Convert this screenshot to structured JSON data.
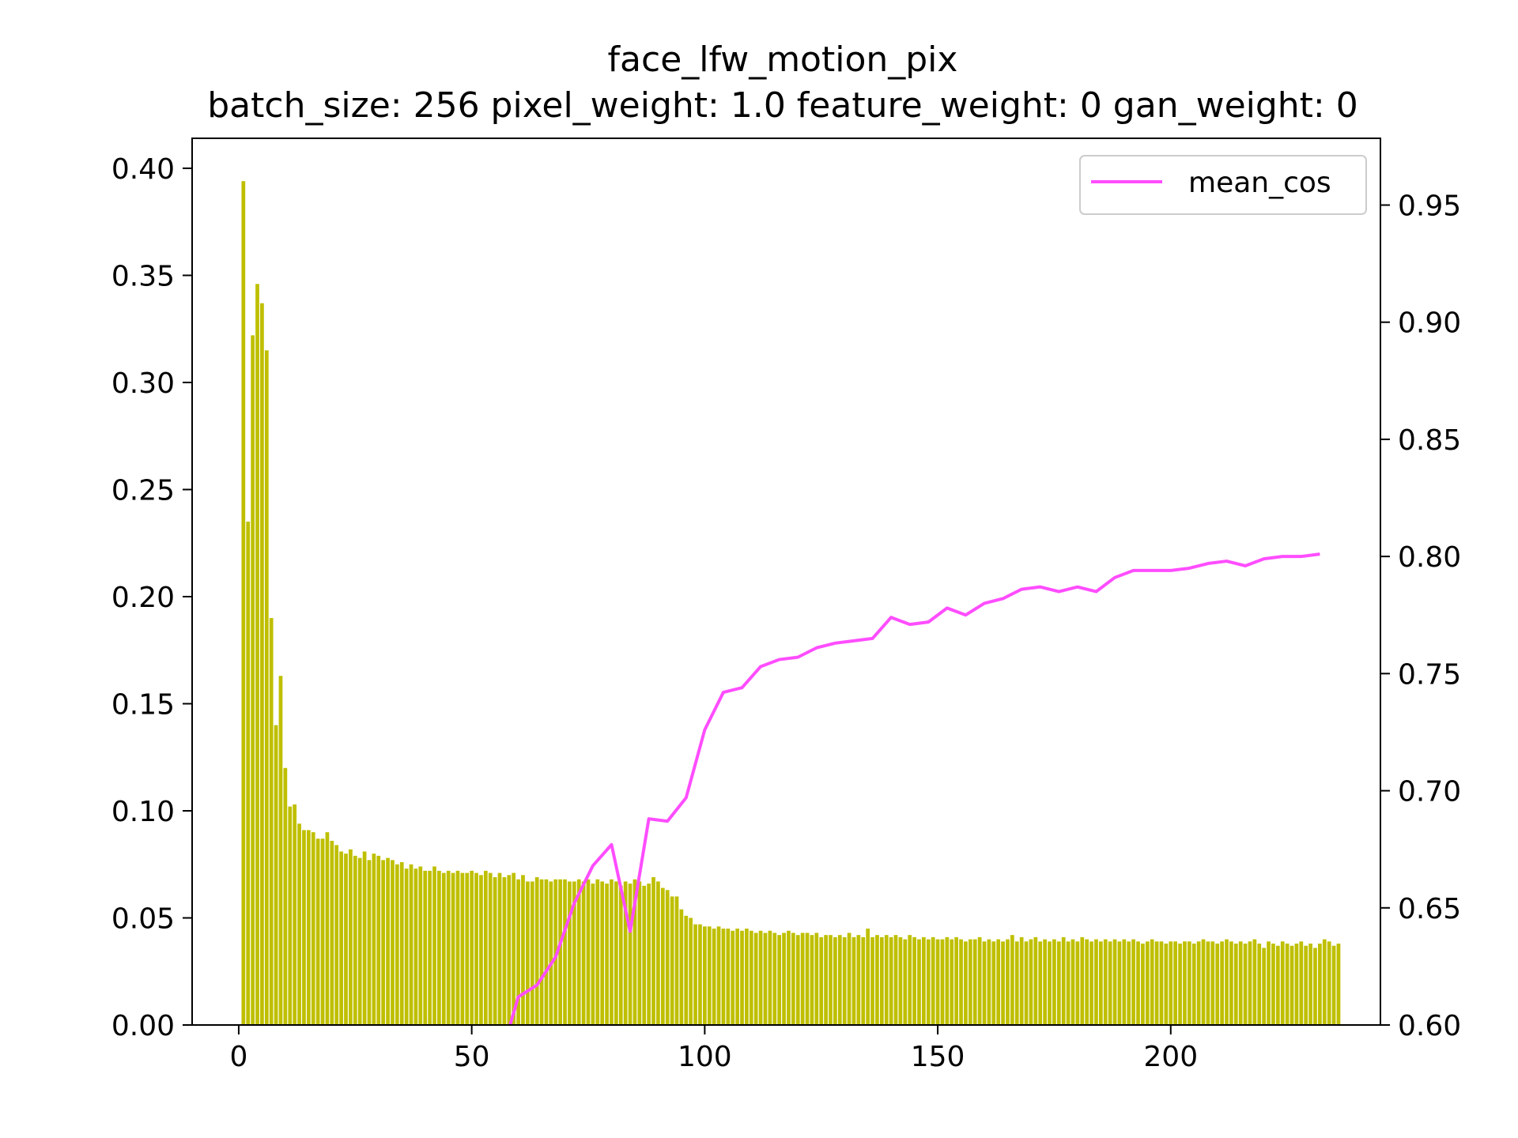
{
  "chart_data": {
    "type": "bar",
    "title": "face_lfw_motion_pix",
    "subtitle": "batch_size: 256 pixel_weight: 1.0 feature_weight: 0 gan_weight: 0",
    "xlabel": "",
    "ylabel": "",
    "xlim": [
      -10,
      245
    ],
    "ylim": [
      0,
      0.414
    ],
    "y2lim": [
      0.6,
      0.9785
    ],
    "x_ticks": [
      0,
      50,
      100,
      150,
      200
    ],
    "x_tick_labels": [
      "0",
      "50",
      "100",
      "150",
      "200"
    ],
    "y_ticks": [
      0,
      0.05,
      0.1,
      0.15,
      0.2,
      0.25,
      0.3,
      0.35,
      0.4
    ],
    "y_tick_labels": [
      "0.00",
      "0.05",
      "0.10",
      "0.15",
      "0.20",
      "0.25",
      "0.30",
      "0.35",
      "0.40"
    ],
    "y2_ticks": [
      0.6,
      0.65,
      0.7,
      0.75,
      0.8,
      0.85,
      0.9,
      0.95
    ],
    "y2_tick_labels": [
      "0.60",
      "0.65",
      "0.70",
      "0.75",
      "0.80",
      "0.85",
      "0.90",
      "0.95"
    ],
    "grid": false,
    "legend": {
      "position": "top-right",
      "entries": [
        "mean_cos"
      ]
    },
    "colors": {
      "bars": "#bfbf00",
      "line": "#ff4dff",
      "axes": "#000000"
    },
    "bars": {
      "x_start": 1,
      "x_step": 1,
      "bar_width": 0.8,
      "values": [
        0.394,
        0.235,
        0.322,
        0.346,
        0.337,
        0.315,
        0.19,
        0.14,
        0.163,
        0.12,
        0.102,
        0.103,
        0.094,
        0.091,
        0.091,
        0.09,
        0.087,
        0.087,
        0.09,
        0.086,
        0.084,
        0.081,
        0.08,
        0.082,
        0.079,
        0.078,
        0.081,
        0.077,
        0.08,
        0.079,
        0.077,
        0.078,
        0.077,
        0.075,
        0.076,
        0.073,
        0.075,
        0.073,
        0.074,
        0.072,
        0.072,
        0.074,
        0.072,
        0.071,
        0.072,
        0.071,
        0.072,
        0.071,
        0.071,
        0.072,
        0.071,
        0.07,
        0.072,
        0.071,
        0.069,
        0.071,
        0.069,
        0.07,
        0.071,
        0.068,
        0.07,
        0.067,
        0.067,
        0.069,
        0.068,
        0.068,
        0.067,
        0.068,
        0.068,
        0.068,
        0.067,
        0.067,
        0.068,
        0.067,
        0.068,
        0.066,
        0.068,
        0.067,
        0.066,
        0.068,
        0.067,
        0.065,
        0.067,
        0.066,
        0.068,
        0.067,
        0.065,
        0.066,
        0.069,
        0.067,
        0.064,
        0.063,
        0.06,
        0.06,
        0.054,
        0.051,
        0.05,
        0.047,
        0.047,
        0.046,
        0.046,
        0.045,
        0.046,
        0.045,
        0.045,
        0.044,
        0.045,
        0.044,
        0.045,
        0.044,
        0.043,
        0.044,
        0.043,
        0.044,
        0.043,
        0.042,
        0.043,
        0.044,
        0.043,
        0.042,
        0.043,
        0.043,
        0.042,
        0.043,
        0.041,
        0.042,
        0.042,
        0.041,
        0.042,
        0.041,
        0.043,
        0.041,
        0.042,
        0.041,
        0.045,
        0.041,
        0.042,
        0.041,
        0.042,
        0.041,
        0.042,
        0.041,
        0.04,
        0.042,
        0.041,
        0.04,
        0.041,
        0.04,
        0.041,
        0.04,
        0.04,
        0.041,
        0.04,
        0.041,
        0.04,
        0.039,
        0.04,
        0.04,
        0.041,
        0.039,
        0.04,
        0.039,
        0.04,
        0.039,
        0.04,
        0.042,
        0.039,
        0.041,
        0.039,
        0.04,
        0.041,
        0.039,
        0.04,
        0.039,
        0.04,
        0.039,
        0.041,
        0.039,
        0.04,
        0.039,
        0.041,
        0.04,
        0.039,
        0.04,
        0.039,
        0.04,
        0.039,
        0.04,
        0.039,
        0.04,
        0.039,
        0.04,
        0.039,
        0.038,
        0.039,
        0.04,
        0.039,
        0.039,
        0.038,
        0.039,
        0.039,
        0.038,
        0.039,
        0.039,
        0.038,
        0.039,
        0.04,
        0.039,
        0.039,
        0.038,
        0.039,
        0.04,
        0.039,
        0.038,
        0.039,
        0.038,
        0.039,
        0.04,
        0.038,
        0.036,
        0.039,
        0.038,
        0.037,
        0.039,
        0.038,
        0.037,
        0.038,
        0.039,
        0.037,
        0.038,
        0.036,
        0.038,
        0.04,
        0.039,
        0.037,
        0.038
      ]
    },
    "series": [
      {
        "name": "mean_cos",
        "axis": "right",
        "x": [
          56,
          60,
          64,
          68,
          72,
          76,
          80,
          84,
          88,
          92,
          96,
          100,
          104,
          108,
          112,
          116,
          120,
          124,
          128,
          132,
          136,
          140,
          144,
          148,
          152,
          156,
          160,
          164,
          168,
          172,
          176,
          180,
          184,
          188,
          192,
          196,
          200,
          204,
          208,
          212,
          216,
          220,
          224,
          228,
          232
        ],
        "values": [
          0.585,
          0.612,
          0.617,
          0.629,
          0.652,
          0.668,
          0.677,
          0.64,
          0.688,
          0.687,
          0.697,
          0.726,
          0.742,
          0.744,
          0.753,
          0.756,
          0.757,
          0.761,
          0.763,
          0.764,
          0.765,
          0.774,
          0.771,
          0.772,
          0.778,
          0.775,
          0.78,
          0.782,
          0.786,
          0.787,
          0.785,
          0.787,
          0.785,
          0.791,
          0.794,
          0.794,
          0.794,
          0.795,
          0.797,
          0.798,
          0.796,
          0.799,
          0.8,
          0.8,
          0.801
        ]
      }
    ]
  }
}
